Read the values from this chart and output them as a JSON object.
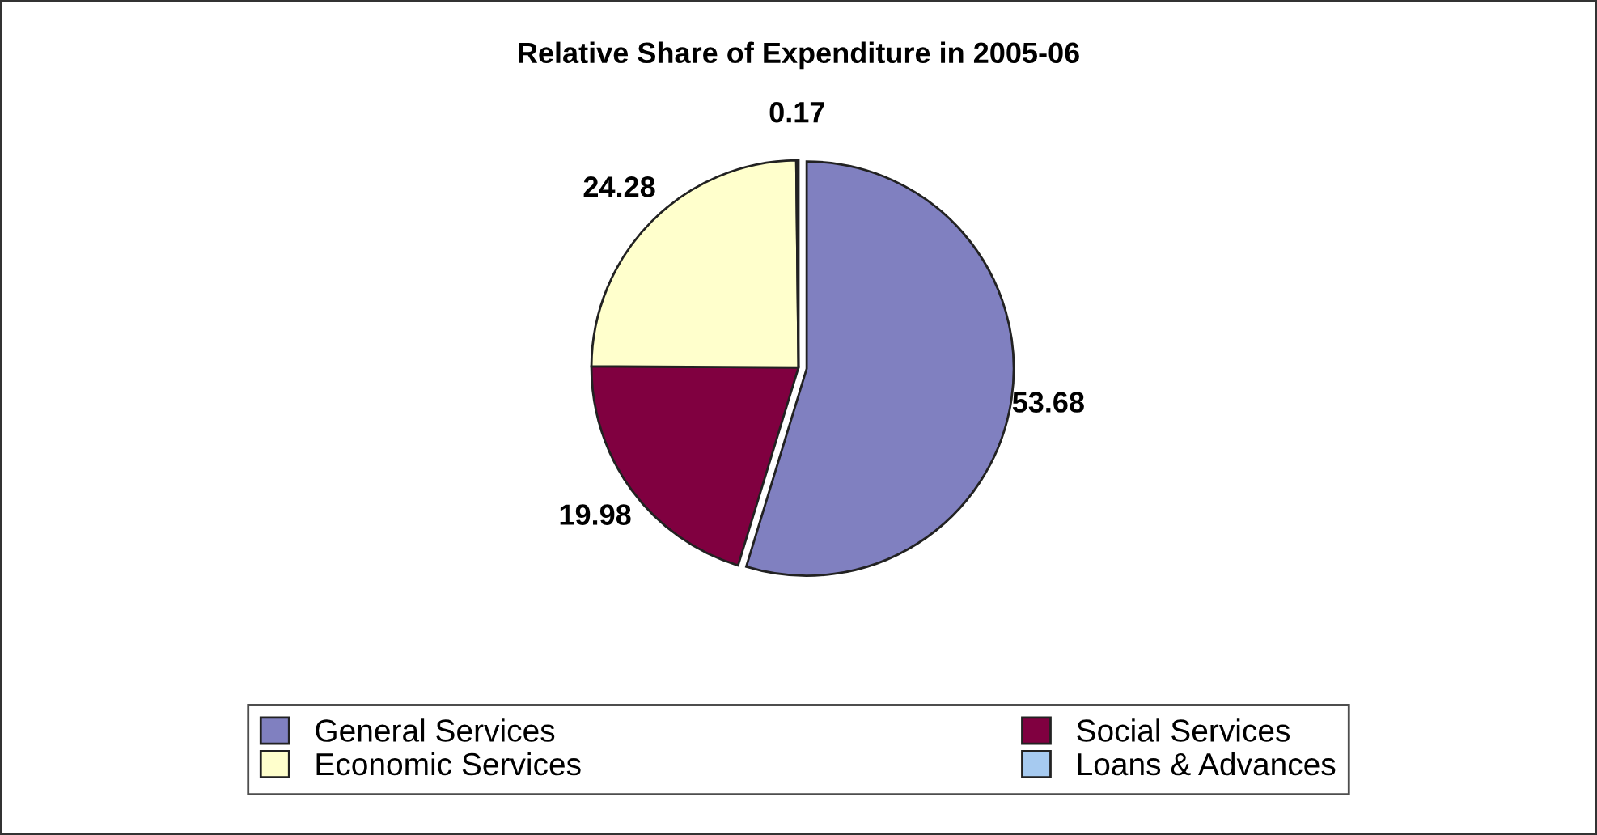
{
  "chart_data": {
    "type": "pie",
    "title": "Relative Share of Expenditure in 2005-06",
    "categories": [
      "General Services",
      "Social Services",
      "Economic Services",
      "Loans & Advances"
    ],
    "values": [
      53.68,
      19.98,
      24.28,
      0.17
    ],
    "colors": [
      "#8080c0",
      "#800040",
      "#ffffcc",
      "#a6caf0"
    ],
    "data_labels": true,
    "legend": "bottom"
  }
}
